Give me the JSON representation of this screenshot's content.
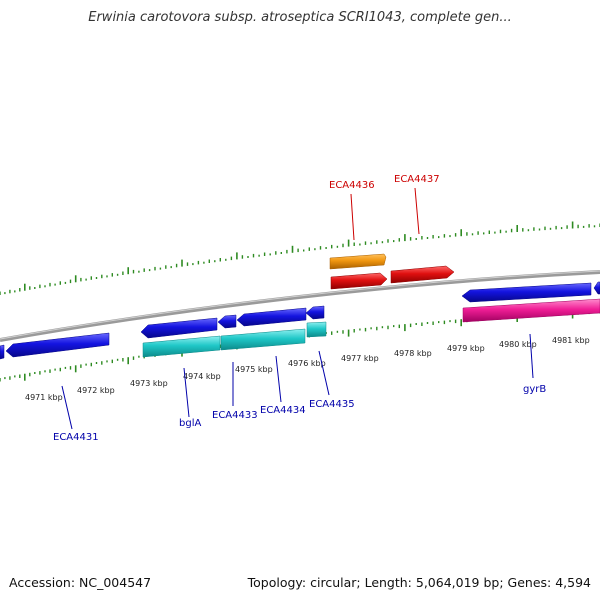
{
  "title": "Erwinia carotovora subsp. atroseptica SCRI1043, complete gen...",
  "footer": {
    "accession": "Accession: NC_004547",
    "summary": "Topology: circular; Length: 5,064,019 bp; Genes: 4,594"
  },
  "colors": {
    "backbone": "#808080",
    "tick": "#2e8b22",
    "gene_blue": "#1414e0",
    "gene_cyan": "#20c8c8",
    "gene_orange": "#f0960f",
    "gene_red": "#e01010",
    "gene_magenta": "#f01e96",
    "label_blue": "#0000aa",
    "label_red": "#cc0000"
  },
  "scale_labels": [
    "4971 kbp",
    "4972 kbp",
    "4973 kbp",
    "4974 kbp",
    "4975 kbp",
    "4976 kbp",
    "4977 kbp",
    "4978 kbp",
    "4979 kbp",
    "4980 kbp",
    "4981 kbp"
  ],
  "gene_labels": [
    {
      "text": "ECA4431",
      "color": "blue"
    },
    {
      "text": "bglA",
      "color": "blue"
    },
    {
      "text": "ECA4433",
      "color": "blue"
    },
    {
      "text": "ECA4434",
      "color": "blue"
    },
    {
      "text": "ECA4435",
      "color": "blue"
    },
    {
      "text": "ECA4436",
      "color": "red"
    },
    {
      "text": "ECA4437",
      "color": "red"
    },
    {
      "text": "gyrB",
      "color": "blue"
    }
  ]
}
